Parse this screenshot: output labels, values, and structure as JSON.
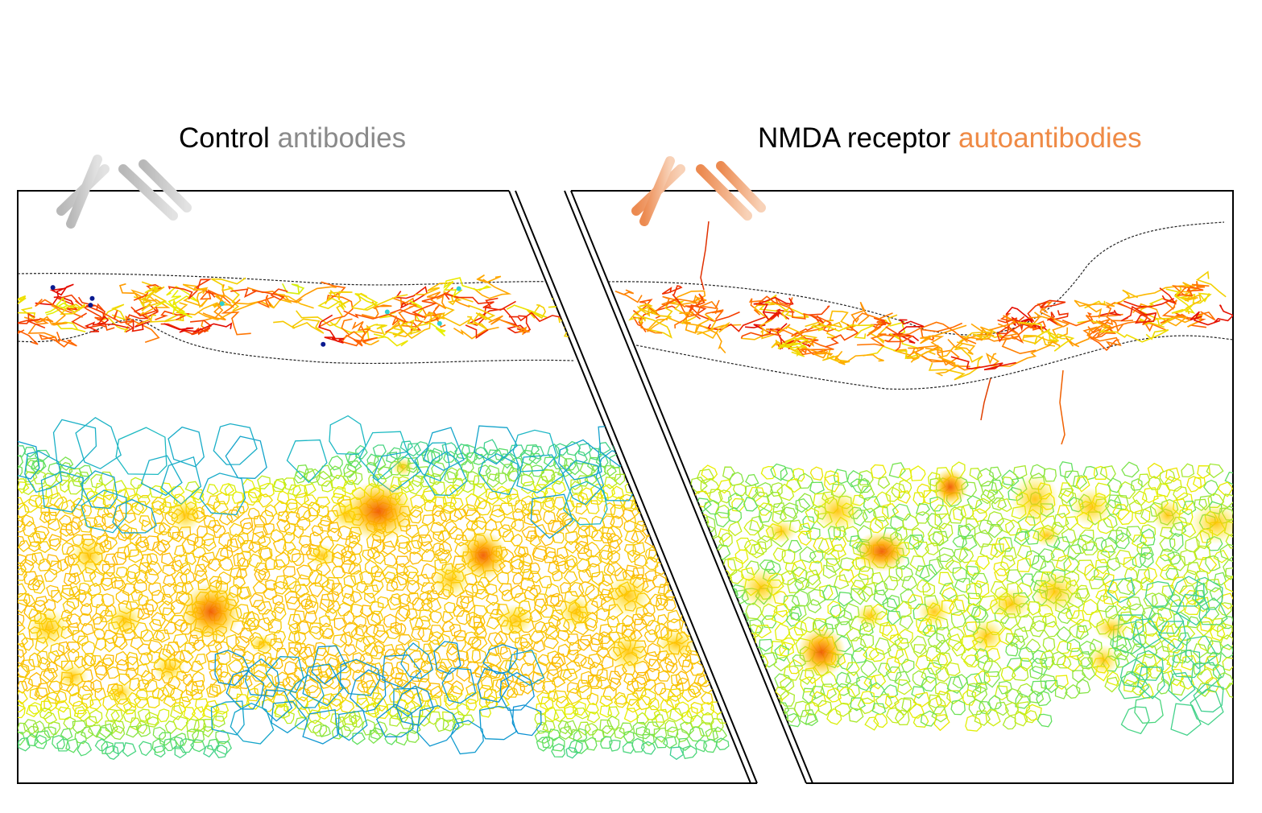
{
  "panels": {
    "left": {
      "title_prefix": "Control",
      "title_highlight": "antibodies",
      "antibody_color": "#c8c8c8",
      "highlight_color": "#8a8a8a"
    },
    "right": {
      "title_prefix": "NMDA receptor",
      "title_highlight": "autoantibodies",
      "antibody_color": "#f0a070",
      "highlight_color": "#ef8a45"
    }
  },
  "colors": {
    "frame": "#000000",
    "background": "#ffffff",
    "colormap": [
      "#0000a0",
      "#0070e0",
      "#20c0c0",
      "#60e060",
      "#e8f000",
      "#ffb000",
      "#ff6000",
      "#e00000"
    ]
  },
  "icons": [
    "antibody-icon",
    "antibody-icon"
  ]
}
